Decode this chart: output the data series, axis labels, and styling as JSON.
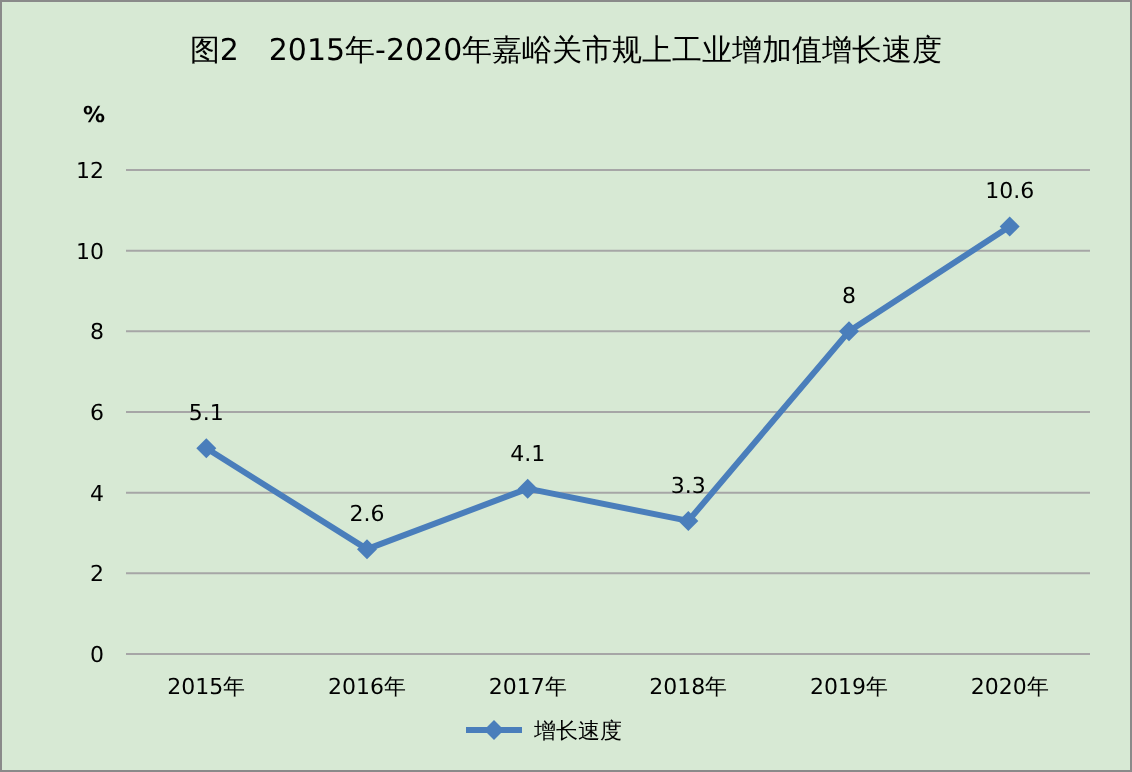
{
  "chart_data": {
    "type": "line",
    "title": "图2　2015年-2020年嘉峪关市规上工业增加值增长速度",
    "ylabel": "%",
    "categories": [
      "2015年",
      "2016年",
      "2017年",
      "2018年",
      "2019年",
      "2020年"
    ],
    "series": [
      {
        "name": "增长速度",
        "color": "#4a7ebb",
        "values": [
          5.1,
          2.6,
          4.1,
          3.3,
          8,
          10.6
        ]
      }
    ],
    "ylim": [
      0,
      12
    ],
    "yticks": [
      0,
      2,
      4,
      6,
      8,
      10,
      12
    ],
    "grid": "y",
    "legend": "bottom",
    "marker": "diamond",
    "data_labels": true
  }
}
